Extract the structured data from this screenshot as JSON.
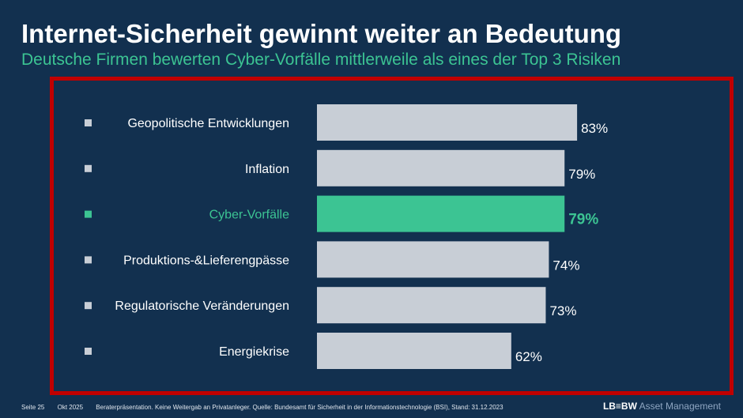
{
  "title": "Internet-Sicherheit gewinnt weiter an Bedeutung",
  "subtitle": "Deutsche Firmen bewerten Cyber-Vorfälle mittlerweile als eines der Top 3 Risiken",
  "chart_data": {
    "type": "bar",
    "orientation": "horizontal",
    "categories": [
      "Geopolitische Entwicklungen",
      "Inflation",
      "Cyber-Vorfälle",
      "Produktions-&Lieferengpässe",
      "Regulatorische Veränderungen",
      "Energiekrise"
    ],
    "values": [
      83,
      79,
      79,
      74,
      73,
      62
    ],
    "data_labels": [
      "83%",
      "79%",
      "79%",
      "74%",
      "73%",
      "62%"
    ],
    "highlight_index": 2,
    "unit": "%",
    "xlim": [
      0,
      100
    ],
    "colors": {
      "bar": "#c8ced6",
      "highlight": "#3cc493",
      "label": "#ffffff"
    }
  },
  "footer": {
    "page": "Seite 25",
    "date": "Okt 2025",
    "note": "Beraterpräsentation. Keine Weitergab an Privatanleger. Quelle: Bundesamt für Sicherheit in der Informationstechnologie (BSI), Stand: 31.12.2023"
  },
  "logo": {
    "brand": "LB≡BW",
    "suffix": "Asset Management"
  },
  "colors": {
    "background": "#12304f",
    "frame": "#c00000",
    "accent": "#3cc493"
  }
}
